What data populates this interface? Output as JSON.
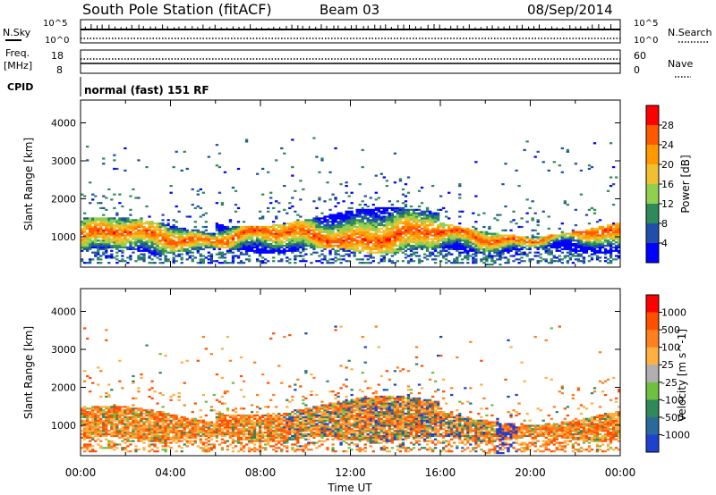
{
  "header": {
    "title": "South Pole Station (fitACF)",
    "beam": "Beam 03",
    "date": "08/Sep/2014"
  },
  "summary": {
    "nsky_label": "N.Sky",
    "nsearch_label": "N.Search",
    "noise_ticks_left": [
      "10^5",
      "10^0"
    ],
    "noise_ticks_right": [
      "10^5",
      "10^0"
    ],
    "freq_label_1": "Freq.",
    "freq_label_2": "[MHz]",
    "freq_ticks": [
      "18",
      "8"
    ],
    "nave_label": "Nave",
    "nave_ticks": [
      "60",
      "0"
    ],
    "cpid_label": "CPID",
    "cpid_value": "normal (fast) 151 RF"
  },
  "colors": {
    "power_scale": [
      "#0000ff",
      "#1f4fa8",
      "#2f8a5a",
      "#8fd14f",
      "#f0c030",
      "#ff9900",
      "#ff5a00",
      "#ff0000"
    ],
    "velocity_scale": [
      "#2040d0",
      "#2a6a9a",
      "#2f8a5a",
      "#70c040",
      "#b0b0b0",
      "#ffb040",
      "#ff8020",
      "#ff5000",
      "#ff0000"
    ]
  },
  "chart_data": [
    {
      "type": "heatmap",
      "name": "power",
      "xlabel": "",
      "ylabel": "Slant Range [km]",
      "ylim": [
        200,
        4600
      ],
      "xlim_hours": [
        0,
        24
      ],
      "yticks": [
        "4000",
        "3000",
        "2000",
        "1000"
      ],
      "colorbar_label": "Power [dB]",
      "colorbar_ticks": [
        "28",
        "24",
        "20",
        "16",
        "12",
        "8",
        "4"
      ]
    },
    {
      "type": "heatmap",
      "name": "velocity",
      "xlabel": "Time UT",
      "ylabel": "Slant Range [km]",
      "ylim": [
        200,
        4600
      ],
      "xlim_hours": [
        0,
        24
      ],
      "yticks": [
        "4000",
        "3000",
        "2000",
        "1000"
      ],
      "xticks": [
        "00:00",
        "04:00",
        "08:00",
        "12:00",
        "16:00",
        "20:00",
        "00:00"
      ],
      "colorbar_label": "Velocity [m s^-1]",
      "colorbar_ticks": [
        "1000",
        "500",
        "100",
        "25",
        "-25",
        "-100",
        "-500",
        "-1000"
      ]
    }
  ]
}
